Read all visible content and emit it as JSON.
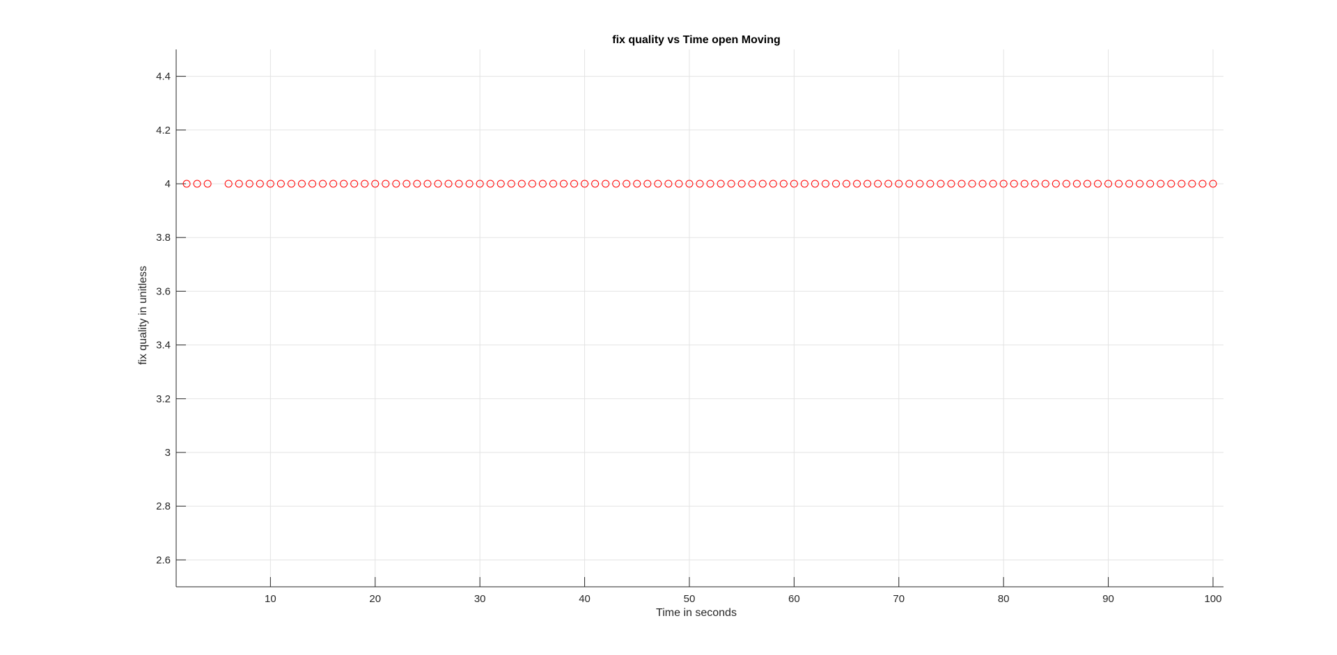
{
  "chart_data": {
    "type": "scatter",
    "title": "fix quality vs Time open Moving",
    "xlabel": "Time in seconds",
    "ylabel": "fix quality in unitless",
    "xlim": [
      1,
      101
    ],
    "ylim": [
      2.5,
      4.5
    ],
    "xticks": [
      10,
      20,
      30,
      40,
      50,
      60,
      70,
      80,
      90,
      100
    ],
    "xtick_labels": [
      "10",
      "20",
      "30",
      "40",
      "50",
      "60",
      "70",
      "80",
      "90",
      "100"
    ],
    "yticks": [
      2.6,
      2.8,
      3,
      3.2,
      3.4,
      3.6,
      3.8,
      4,
      4.2,
      4.4
    ],
    "ytick_labels": [
      "2.6",
      "2.8",
      "3",
      "3.2",
      "3.4",
      "3.6",
      "3.8",
      "4",
      "4.2",
      "4.4"
    ],
    "grid": true,
    "marker": "circle-open",
    "series": [
      {
        "color": "#ff0000",
        "x": [
          2,
          3,
          4,
          6,
          7,
          8,
          9,
          10,
          11,
          12,
          13,
          14,
          15,
          16,
          17,
          18,
          19,
          20,
          21,
          22,
          23,
          24,
          25,
          26,
          27,
          28,
          29,
          30,
          31,
          32,
          33,
          34,
          35,
          36,
          37,
          38,
          39,
          40,
          41,
          42,
          43,
          44,
          45,
          46,
          47,
          48,
          49,
          50,
          51,
          52,
          53,
          54,
          55,
          56,
          57,
          58,
          59,
          60,
          61,
          62,
          63,
          64,
          65,
          66,
          67,
          68,
          69,
          70,
          71,
          72,
          73,
          74,
          75,
          76,
          77,
          78,
          79,
          80,
          81,
          82,
          83,
          84,
          85,
          86,
          87,
          88,
          89,
          90,
          91,
          92,
          93,
          94,
          95,
          96,
          97,
          98,
          99,
          100
        ],
        "y": [
          4,
          4,
          4,
          4,
          4,
          4,
          4,
          4,
          4,
          4,
          4,
          4,
          4,
          4,
          4,
          4,
          4,
          4,
          4,
          4,
          4,
          4,
          4,
          4,
          4,
          4,
          4,
          4,
          4,
          4,
          4,
          4,
          4,
          4,
          4,
          4,
          4,
          4,
          4,
          4,
          4,
          4,
          4,
          4,
          4,
          4,
          4,
          4,
          4,
          4,
          4,
          4,
          4,
          4,
          4,
          4,
          4,
          4,
          4,
          4,
          4,
          4,
          4,
          4,
          4,
          4,
          4,
          4,
          4,
          4,
          4,
          4,
          4,
          4,
          4,
          4,
          4,
          4,
          4,
          4,
          4,
          4,
          4,
          4,
          4,
          4,
          4,
          4,
          4,
          4,
          4,
          4,
          4,
          4,
          4,
          4,
          4,
          4
        ]
      }
    ]
  }
}
